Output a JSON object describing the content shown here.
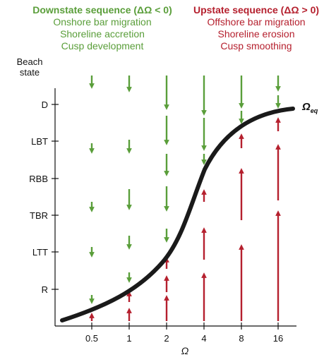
{
  "downstate": {
    "title": "Downstate sequence (ΔΩ < 0)",
    "lines": [
      "Onshore bar migration",
      "Shoreline accretion",
      "Cusp development"
    ]
  },
  "upstate": {
    "title": "Upstate sequence (ΔΩ > 0)",
    "lines": [
      "Offshore bar migration",
      "Shoreline erosion",
      "Cusp smoothing"
    ]
  },
  "y_axis": {
    "label_line1": "Beach",
    "label_line2": "state",
    "ticks": [
      "D",
      "LBT",
      "RBB",
      "TBR",
      "LTT",
      "R"
    ]
  },
  "x_axis": {
    "label": "Ω",
    "ticks": [
      "0.5",
      "1",
      "2",
      "4",
      "8",
      "16"
    ]
  },
  "curve_label": {
    "main": "Ω",
    "sub": "eq"
  },
  "colors": {
    "down": "#5a9e3a",
    "up": "#b5202e",
    "curve": "#1a1a1a",
    "axis": "#111111"
  }
}
